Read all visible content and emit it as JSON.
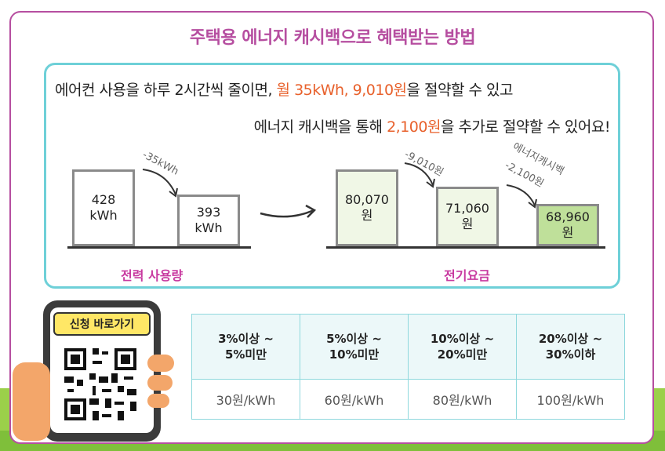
{
  "title": "주택용 에너지 캐시백으로 혜택받는 방법",
  "line1": {
    "prefix": "에어컨 사용을 하루 2시간씩 줄이면, ",
    "highlight": "월 35kWh, 9,010원",
    "suffix": "을 절약할 수 있고"
  },
  "line2": {
    "prefix": "에너지 캐시백을 통해 ",
    "highlight": "2,100원",
    "suffix": "을 추가로 절약할 수 있어요!"
  },
  "usage": {
    "before": {
      "value": "428",
      "unit": "kWh"
    },
    "after": {
      "value": "393",
      "unit": "kWh"
    },
    "diff": "-35kWh",
    "label": "전력 사용량"
  },
  "bill": {
    "b1": {
      "value": "80,070",
      "unit": "원"
    },
    "b2": {
      "value": "71,060",
      "unit": "원"
    },
    "b3": {
      "value": "68,960",
      "unit": "원"
    },
    "diff1": "-9,010원",
    "diff2_line1": "에너지캐시백",
    "diff2_line2": "-2,100원",
    "label": "전기요금"
  },
  "apply_button": "신청 바로가기",
  "rates": {
    "headers": [
      [
        "3%이상 ~",
        "5%미만"
      ],
      [
        "5%이상 ~",
        "10%미만"
      ],
      [
        "10%이상 ~",
        "20%미만"
      ],
      [
        "20%이상 ~",
        "30%이하"
      ]
    ],
    "values": [
      "30원/kWh",
      "60원/kWh",
      "80원/kWh",
      "100원/kWh"
    ]
  },
  "colors": {
    "accent": "#b64ea0",
    "highlight": "#e8612c",
    "frame": "#6ed0d8"
  }
}
